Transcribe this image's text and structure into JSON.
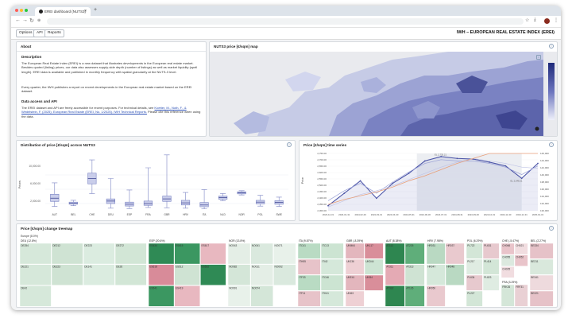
{
  "browser": {
    "tab_title": "EREI dashboard (NUTS3)",
    "new_tab": "+"
  },
  "toolbar": {
    "options_label": "Options",
    "api_label": "API",
    "reports_label": "Reports",
    "app_title": "IWH – EUROPEAN REAL ESTATE INDEX (EREI)"
  },
  "about": {
    "title": "About",
    "description_heading": "Description",
    "description": "The European Real Estate Index (EREI) is a new dataset that illustrates developments in the European real estate market. Besides quoted (listing) prices, our data also assesses supply-side depth (number of listings) as well as market liquidity (spell length). EREI data is available and published in monthly frequency with spatial granularity at the NUTS-3 level.",
    "report_text": "Every quarter, the IWH publishes a report on recent developments in the European real estate market based on the EREI dataset.",
    "access_heading": "Data access and API",
    "access_text_pre": "The EREI dataset and API are freely accessible for recent purposes. For technical details, see ",
    "access_link": "Koetter, M., Noth, F., & Wedelstein, F. (2025). European Real Estate (EREI, No. 1/2025). IWH Technical Reports.",
    "access_text_post": " Please cite this reference when using the data."
  },
  "map": {
    "title": "NUTS3 price [€/sqm] map",
    "scale_ticks": [
      "300,000",
      "250,000",
      "200,000",
      "150,000",
      "100,000",
      "50,000"
    ]
  },
  "box": {
    "title": "Distribution of price [€/sqm] across NUTS3",
    "ylabel": "Prices",
    "yticks": [
      "10,000.00",
      "6,000.00",
      "2,000.00"
    ]
  },
  "ts": {
    "title": "Price [€/sqm] time series",
    "ylabel": "Price",
    "yticks": [
      "2,750.00",
      "2,700.00",
      "2,650.00",
      "2,600.00",
      "2,550.00",
      "2,500.00",
      "2,450.00",
      "2,400.00",
      "2,350.00",
      "2,300.00"
    ],
    "y2ticks": [
      "146,000",
      "144,000",
      "142,000",
      "140,000",
      "138,000",
      "136,000",
      "134,000",
      "132,000",
      "130,000"
    ],
    "xticks": [
      "2023-12-31",
      "2024-01-31",
      "2024-02-29",
      "2024-03-31",
      "2024-04-30",
      "2024-05-31",
      "2024-06-30",
      "2024-07-31",
      "2024-08-31",
      "2024-09-30",
      "2024-10-31",
      "2024-11-30",
      "2024-12-31",
      "2025-01-31"
    ],
    "annotations": [
      "EL 2,735.21",
      "EL 2,548.21"
    ]
  },
  "treemap": {
    "title": "Price [€/sqm] change treemap",
    "root": "Europe (8.0%)",
    "groups": [
      {
        "name": "DEU (12.8%)",
        "cells": [
          "DE254",
          "DE212",
          "DE223",
          "DE272",
          "DE221",
          "DE223",
          "DE141",
          "DE26",
          "DE42"
        ]
      },
      {
        "name": "ESP (20.6%)",
        "cells": [
          "ES434",
          "ES615",
          "ES617",
          "ES618",
          "ES512",
          "ES532",
          "ES541",
          "ES419"
        ]
      },
      {
        "name": "NOR (13.8%)",
        "cells": [
          "NO043",
          "NO041",
          "NO071",
          "NO082",
          "NO011",
          "NO092",
          "NO091",
          "NO074"
        ]
      },
      {
        "name": "ITA (9.87%)",
        "cells": [
          "ITC41",
          "ITC13",
          "ITH55",
          "ITI42",
          "ITF33",
          "ITC46",
          "ITF11",
          "ITH41"
        ]
      },
      {
        "name": "GBR (-8.39%)",
        "cells": [
          "UKM64",
          "UKL17",
          "UKJ36",
          "UKD44",
          "UKE41",
          "UKI54",
          "UKI63"
        ]
      },
      {
        "name": "AUT (8.38%)",
        "cells": [
          "AT112",
          "AT225",
          "AT311",
          "AT313",
          "AT332",
          "AT126"
        ]
      },
      {
        "name": "HRV (7.98%)",
        "cells": [
          "HR031",
          "HR037",
          "HR047",
          "HR048",
          "HR050"
        ]
      },
      {
        "name": "POL (6.29%)",
        "cells": [
          "PL722",
          "PL631",
          "PL217",
          "PL414",
          "PL634",
          "PL823",
          "PL227"
        ]
      },
      {
        "name": "CHE (-5.47%)",
        "cells": [
          "CH066",
          "CH021",
          "CH055",
          "CH052",
          "CH025"
        ]
      },
      {
        "name": "BEL (2.27%)",
        "cells": [
          "BE334",
          "BE211",
          "BE341",
          "BE221"
        ]
      },
      {
        "name": "FRA (3.29%)",
        "cells": [
          "FRK26",
          "FRF31"
        ]
      }
    ]
  },
  "chart_data": [
    {
      "type": "box",
      "title": "Distribution of price [€/sqm] across NUTS3",
      "ylabel": "Prices",
      "categories": [
        "AUT",
        "BEL",
        "CHE",
        "DEU",
        "ESP",
        "FRA",
        "GBR",
        "HRV",
        "ITA",
        "NLD",
        "NOR",
        "POL",
        "SWE"
      ],
      "series": [
        {
          "values": [
            {
              "min": 1200,
              "q1": 2600,
              "median": 3500,
              "q3": 4600,
              "max": 7800
            },
            {
              "min": 1400,
              "q1": 1800,
              "median": 2100,
              "q3": 2400,
              "max": 2900
            },
            {
              "min": 4800,
              "q1": 7500,
              "median": 9000,
              "q3": 10500,
              "max": 14200
            },
            {
              "min": 700,
              "q1": 2000,
              "median": 2700,
              "q3": 3300,
              "max": 9000
            },
            {
              "min": 600,
              "q1": 1300,
              "median": 1800,
              "q3": 2400,
              "max": 5800
            },
            {
              "min": 900,
              "q1": 1500,
              "median": 2000,
              "q3": 2700,
              "max": 12000
            },
            {
              "min": 800,
              "q1": 2600,
              "median": 3300,
              "q3": 4100,
              "max": 15600
            },
            {
              "min": 700,
              "q1": 1600,
              "median": 2200,
              "q3": 2900,
              "max": 5100
            },
            {
              "min": 500,
              "q1": 1100,
              "median": 1600,
              "q3": 2300,
              "max": 5900
            },
            {
              "min": 2800,
              "q1": 3200,
              "median": 3700,
              "q3": 4100,
              "max": 4800
            },
            {
              "min": 4400,
              "q1": 4700,
              "median": 5000,
              "q3": 5300,
              "max": 5600
            },
            {
              "min": 1300,
              "q1": 1900,
              "median": 2400,
              "q3": 2900,
              "max": 4300
            },
            {
              "min": 1200,
              "q1": 1800,
              "median": 2300,
              "q3": 2800,
              "max": 3800
            }
          ]
        }
      ],
      "yticks": [
        2000,
        6000,
        10000
      ]
    },
    {
      "type": "line",
      "title": "Price [€/sqm] time series",
      "ylabel": "Price",
      "x": [
        "2023-12-31",
        "2024-01-31",
        "2024-02-29",
        "2024-03-31",
        "2024-04-30",
        "2024-05-31",
        "2024-06-30",
        "2024-07-31",
        "2024-08-31",
        "2024-09-30",
        "2024-10-31",
        "2024-11-30",
        "2024-12-31",
        "2025-01-31"
      ],
      "ylim": [
        2300,
        2760
      ],
      "series": [
        {
          "values": [
            2340,
            2440,
            2540,
            2400,
            2520,
            2600,
            2700,
            2735,
            2720,
            2715,
            2690,
            2660,
            2560,
            2680
          ]
        },
        {
          "values": [
            2380,
            2460,
            2520,
            2440,
            2530,
            2610,
            2680,
            2710,
            2700,
            2700,
            2680,
            2650,
            2590,
            2660
          ]
        },
        {
          "values": [
            2330,
            2380,
            2430,
            2460,
            2500,
            2550,
            2600,
            2650,
            2690,
            2720,
            2700,
            2680,
            2650,
            2640
          ]
        },
        {
          "values": [
            2350,
            2390,
            2420,
            2450,
            2490,
            2540,
            2580,
            2630,
            2680,
            2720,
            2760,
            2760,
            2760,
            2760
          ]
        }
      ]
    }
  ]
}
